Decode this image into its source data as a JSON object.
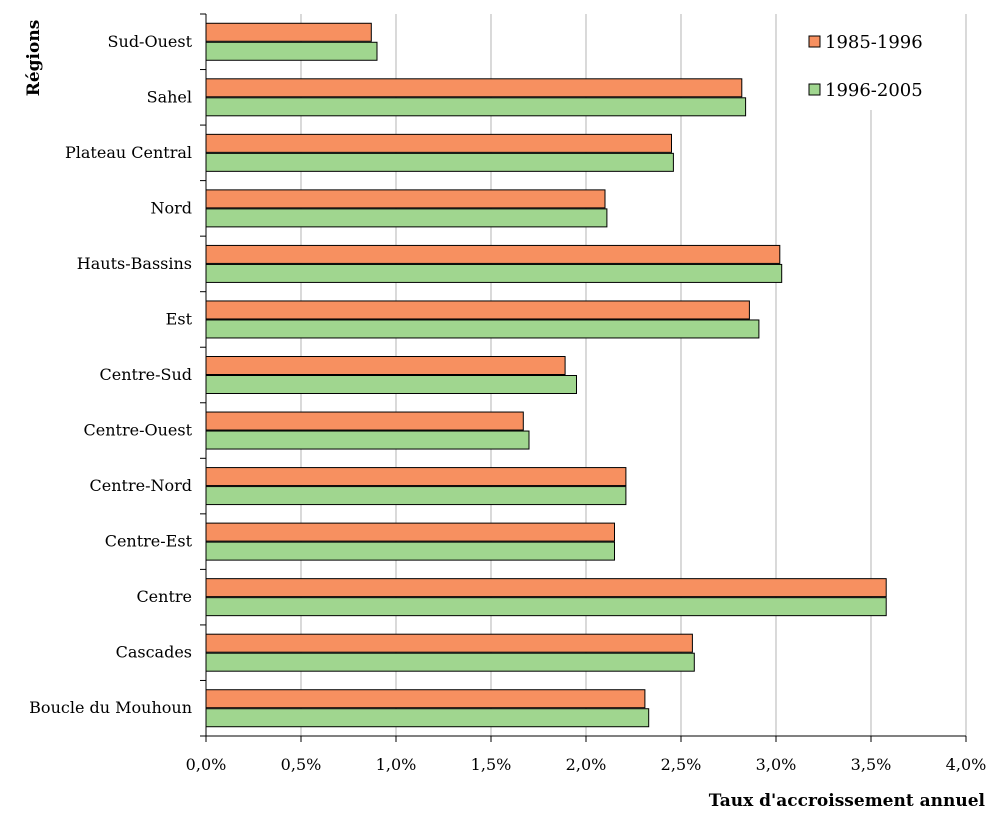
{
  "chart_data": {
    "type": "bar",
    "orientation": "horizontal",
    "ylabel": "Régions",
    "xlabel": "Taux d'accroissement annuel",
    "categories": [
      "Sud-Ouest",
      "Sahel",
      "Plateau Central",
      "Nord",
      "Hauts-Bassins",
      "Est",
      "Centre-Sud",
      "Centre-Ouest",
      "Centre-Nord",
      "Centre-Est",
      "Centre",
      "Cascades",
      "Boucle du Mouhoun"
    ],
    "series": [
      {
        "name": "1985-1996",
        "color": "#F79060",
        "values": [
          0.87,
          2.82,
          2.45,
          2.1,
          3.02,
          2.86,
          1.89,
          1.67,
          2.21,
          2.15,
          3.58,
          2.56,
          2.31
        ]
      },
      {
        "name": "1996-2005",
        "color": "#A0D68F",
        "values": [
          0.9,
          2.84,
          2.46,
          2.11,
          3.03,
          2.91,
          1.95,
          1.7,
          2.21,
          2.15,
          3.58,
          2.57,
          2.33
        ]
      }
    ],
    "xlim": [
      0,
      4.0
    ],
    "xticks": [
      "0,0%",
      "0,5%",
      "1,0%",
      "1,5%",
      "2,0%",
      "2,5%",
      "3,0%",
      "3,5%",
      "4,0%"
    ],
    "xtick_values": [
      0,
      0.5,
      1.0,
      1.5,
      2.0,
      2.5,
      3.0,
      3.5,
      4.0
    ],
    "grid": "vertical",
    "legend_position": "top-right"
  }
}
